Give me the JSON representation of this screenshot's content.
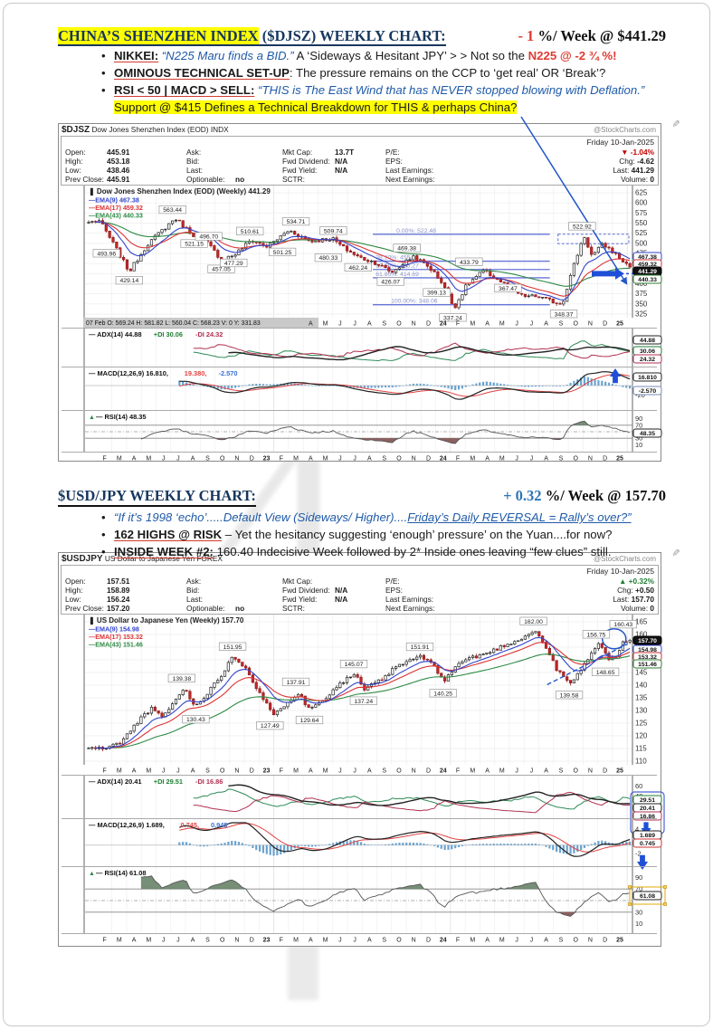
{
  "s1": {
    "title_hl": "CHINA’S SHENZHEN INDEX",
    "title_rest": " ($DJSZ) WEEKLY CHART:",
    "delta": "- 1",
    "delta_rest": " %/ Week @ $441.29",
    "b1_label": "NIKKEI:",
    "b1_quote": "“N225 Maru finds a BID.”",
    "b1_mid": " A ‘Sideways & Hesitant JPY’ > > Not so the ",
    "b1_alert": "N225 @ -2 ¾ %!",
    "b2_label": "OMINOUS TECHNICAL SET-UP",
    "b2_rest": ": The pressure remains on the CCP to ‘get real’ OR ‘Break’?",
    "b3_label": "RSI < 50 | MACD > SELL:",
    "b3_quote": " “THIS is The East Wind that has NEVER stopped blowing with Deflation.”",
    "b3_hl": " Support @ $415 Defines a Technical Breakdown for THIS & perhaps China?"
  },
  "s2": {
    "title": "$USD/JPY WEEKLY CHART:",
    "delta": "+ 0.32",
    "delta_rest": " %/ Week @ 157.70",
    "b1_pre": "“If it’s 1998 ‘echo’.....Default View (Sideways/ Higher)....",
    "b1_u": "Friday’s Daily REVERSAL = Rally’s over?”",
    "b2_label": "162 HIGHS @ RISK",
    "b2_rest": " – Yet the hesitancy suggesting ‘enough’ pressure’ on the Yuan....for now?",
    "b3_label": "INSIDE WEEK #2:",
    "b3_rest": " 160.40 Indecisive Week followed by 2* Inside ones leaving “few clues” still."
  },
  "c1": {
    "symbol": "$DJSZ",
    "name": "Dow Jones Shenzhen Index (EOD) INDX",
    "credit": "@StockCharts.com",
    "date": "Friday 10-Jan-2025",
    "pct_color": "#c00000",
    "quote_rows": [
      [
        "Open:",
        "445.91",
        "Ask:",
        "",
        "Mkt Cap:",
        "13.7T",
        "P/E:",
        "",
        "▼ -1.04%"
      ],
      [
        "High:",
        "453.18",
        "Bid:",
        "",
        "Fwd Dividend:",
        "N/A",
        "EPS:",
        "",
        "Chg: -4.62"
      ],
      [
        "Low:",
        "438.46",
        "Last:",
        "",
        "Fwd Yield:",
        "N/A",
        "Last Earnings:",
        "",
        "Last: 441.29"
      ],
      [
        "Prev Close:",
        "445.91",
        "Optionable:",
        "no",
        "SCTR:",
        "",
        "Next Earnings:",
        "",
        "Volume: 0"
      ]
    ]
  },
  "c2": {
    "symbol": "$USDJPY",
    "name": "US Dollar to Japanese Yen FOREX",
    "credit": "@StockCharts.com",
    "date": "Friday 10-Jan-2025",
    "pct_color": "#1e7d32",
    "quote_rows": [
      [
        "Open:",
        "157.51",
        "Ask:",
        "",
        "Mkt Cap:",
        "",
        "P/E:",
        "",
        "▲ +0.32%"
      ],
      [
        "High:",
        "158.89",
        "Bid:",
        "",
        "Fwd Dividend:",
        "N/A",
        "EPS:",
        "",
        "Chg: +0.50"
      ],
      [
        "Low:",
        "156.24",
        "Last:",
        "",
        "Fwd Yield:",
        "N/A",
        "Last Earnings:",
        "",
        "Last: 157.70"
      ],
      [
        "Prev Close:",
        "157.20",
        "Optionable:",
        "no",
        "SCTR:",
        "",
        "Next Earnings:",
        "",
        "Volume: 0"
      ]
    ]
  },
  "chart_data": [
    {
      "type": "candlestick",
      "symbol": "$DJSZ",
      "timeframe": "weekly",
      "title": "Dow Jones Shenzhen Index (EOD) (Weekly) 441.29",
      "last": 441.29,
      "change_pct": -1.04,
      "change": -4.62,
      "ylim": [
        325,
        625
      ],
      "ytick": 25,
      "months": [
        "F",
        "M",
        "A",
        "M",
        "J",
        "J",
        "A",
        "S",
        "O",
        "N",
        "D",
        "23",
        "F",
        "M",
        "A",
        "M",
        "J",
        "J",
        "A",
        "S",
        "O",
        "N",
        "D",
        "24",
        "F",
        "M",
        "A",
        "M",
        "J",
        "J",
        "A",
        "S",
        "O",
        "N",
        "D",
        "25"
      ],
      "ema_legend": [
        "EMA(9) 467.38",
        "EMA(17) 459.32",
        "EMA(43) 440.33"
      ],
      "ohlc_readout": "07 Feb O: 569.24  H: 581.82  L: 560.04  C: 568.23  V: 0  Y: 331.83",
      "noise": 5,
      "wick": 6,
      "seed": 7,
      "anchors": [
        [
          0,
          552
        ],
        [
          0.02,
          556
        ],
        [
          0.045,
          500
        ],
        [
          0.075,
          430
        ],
        [
          0.11,
          500
        ],
        [
          0.16,
          562
        ],
        [
          0.19,
          524
        ],
        [
          0.22,
          500
        ],
        [
          0.245,
          460
        ],
        [
          0.27,
          472
        ],
        [
          0.3,
          508
        ],
        [
          0.33,
          492
        ],
        [
          0.37,
          532
        ],
        [
          0.41,
          505
        ],
        [
          0.45,
          512
        ],
        [
          0.47,
          490
        ],
        [
          0.5,
          465
        ],
        [
          0.53,
          452
        ],
        [
          0.56,
          428
        ],
        [
          0.6,
          468
        ],
        [
          0.63,
          440
        ],
        [
          0.655,
          400
        ],
        [
          0.675,
          340
        ],
        [
          0.7,
          400
        ],
        [
          0.73,
          432
        ],
        [
          0.77,
          398
        ],
        [
          0.8,
          370
        ],
        [
          0.83,
          368
        ],
        [
          0.86,
          355
        ],
        [
          0.875,
          350
        ],
        [
          0.895,
          440
        ],
        [
          0.915,
          520
        ],
        [
          0.93,
          468
        ],
        [
          0.95,
          498
        ],
        [
          0.97,
          478
        ],
        [
          0.99,
          452
        ],
        [
          1,
          441.29
        ]
      ],
      "labels": [
        {
          "t": "493.96",
          "x": 0.033,
          "v": 493.96,
          "p": "b"
        },
        {
          "t": "429.14",
          "x": 0.075,
          "v": 427,
          "p": "b"
        },
        {
          "t": "563.44",
          "x": 0.155,
          "v": 566,
          "p": "a"
        },
        {
          "t": "521.15",
          "x": 0.195,
          "v": 518,
          "p": "b"
        },
        {
          "t": "496.70",
          "x": 0.222,
          "v": 500,
          "p": "a"
        },
        {
          "t": "457.05",
          "x": 0.245,
          "v": 455,
          "p": "b"
        },
        {
          "t": "477.29",
          "x": 0.268,
          "v": 470,
          "p": "b"
        },
        {
          "t": "510.61",
          "x": 0.298,
          "v": 513,
          "p": "a"
        },
        {
          "t": "501.25",
          "x": 0.358,
          "v": 497,
          "p": "b"
        },
        {
          "t": "534.71",
          "x": 0.383,
          "v": 537,
          "p": "a"
        },
        {
          "t": "480.33",
          "x": 0.443,
          "v": 483,
          "p": "b"
        },
        {
          "t": "509.74",
          "x": 0.452,
          "v": 514,
          "p": "a"
        },
        {
          "t": "462.24",
          "x": 0.498,
          "v": 459,
          "p": "b"
        },
        {
          "t": "426.07",
          "x": 0.558,
          "v": 424,
          "p": "b"
        },
        {
          "t": "469.38",
          "x": 0.588,
          "v": 471,
          "p": "a"
        },
        {
          "t": "399.13",
          "x": 0.643,
          "v": 397,
          "p": "b"
        },
        {
          "t": "337.24",
          "x": 0.673,
          "v": 335,
          "p": "b"
        },
        {
          "t": "433.79",
          "x": 0.703,
          "v": 437,
          "p": "a"
        },
        {
          "t": "367.47",
          "x": 0.775,
          "v": 372,
          "p": "a"
        },
        {
          "t": "348.37",
          "x": 0.878,
          "v": 344,
          "p": "b"
        },
        {
          "t": "522.92",
          "x": 0.912,
          "v": 525,
          "p": "a"
        }
      ],
      "fib": {
        "x1": 0.525,
        "x2": 0.85,
        "lines": [
          {
            "label": "0.00%: 522.48",
            "v": 522.48,
            "lx": 0.565
          },
          {
            "label": "38.20%: 455.85",
            "v": 455.85,
            "lx": 0.527
          },
          {
            "label": "50.00%: 435.27",
            "v": 435.27,
            "lx": 0.527
          },
          {
            "label": "61.80%: 414.69",
            "v": 414.69,
            "lx": 0.527
          },
          {
            "label": "100.00%: 348.06",
            "v": 348.06,
            "lx": 0.555
          }
        ]
      },
      "trend": {
        "x1": 508,
        "y1": -76,
        "x2": 621,
        "y2": 103
      },
      "dash_rect": {
        "x1f": 0.865,
        "x2f": 0.995,
        "v1": 522.48,
        "v2": 499
      },
      "dash_arrow_v": 425,
      "end_boxes": [
        {
          "t": "467.38",
          "c": "#3344cc",
          "y": 74
        },
        {
          "t": "459.32",
          "c": "#cc3333",
          "y": 82
        },
        {
          "t": "441.29",
          "c": "#000000",
          "fill": "#111111",
          "tc": "#ffffff",
          "y": 90
        },
        {
          "t": "440.33",
          "c": "#2e7d32",
          "y": 99
        }
      ],
      "panels": {
        "adx": {
          "legend": [
            "ADX(14) 44.88",
            "+DI 30.06",
            "-DI 24.32"
          ],
          "values": {
            "adx": 44.88,
            "pdi": 30.06,
            "mdi": 24.32
          },
          "ticks": [
            {
              "t": "60",
              "v": 60
            },
            {
              "t": "10",
              "v": 10
            }
          ],
          "boxes": [
            {
              "t": "44.88",
              "c": "#222222",
              "y": 8
            },
            {
              "t": "30.06",
              "c": "#1e7d32",
              "y": 20
            },
            {
              "t": "24.32",
              "c": "#b03050",
              "y": 29
            }
          ]
        },
        "macd": {
          "legend": [
            "MACD(12,26,9) 16.810,",
            "19.380,",
            "-2.570"
          ],
          "values": {
            "macd": 16.81,
            "signal": 19.38,
            "hist": -2.57
          },
          "ticks": [
            {
              "t": "-20",
              "v": -20
            }
          ],
          "boxes": [
            {
              "t": "16.810",
              "c": "#222222",
              "y": 6
            },
            {
              "t": "-2.570",
              "c": "#7a8ab8",
              "y": 21
            }
          ],
          "arrow": {
            "x": 612,
            "y": 10,
            "dir": -1
          }
        },
        "rsi": {
          "legend": "RSI(14) 48.35",
          "value": 48.35,
          "ticks": [
            {
              "t": "90",
              "v": 90
            },
            {
              "t": "70",
              "v": 70
            },
            {
              "t": "30",
              "v": 30
            },
            {
              "t": "10",
              "v": 10
            }
          ],
          "boxes": [
            {
              "t": "48.35",
              "c": "#222222",
              "y": 20
            }
          ]
        }
      }
    },
    {
      "type": "candlestick",
      "symbol": "$USDJPY",
      "timeframe": "weekly",
      "title": "US Dollar to Japanese Yen (Weekly) 157.70",
      "last": 157.7,
      "change_pct": 0.32,
      "change": 0.5,
      "ylim": [
        110,
        165
      ],
      "ytick": 5,
      "months": [
        "F",
        "M",
        "A",
        "M",
        "J",
        "J",
        "A",
        "S",
        "O",
        "N",
        "D",
        "23",
        "F",
        "M",
        "A",
        "M",
        "J",
        "J",
        "A",
        "S",
        "O",
        "N",
        "D",
        "24",
        "F",
        "M",
        "A",
        "M",
        "J",
        "J",
        "A",
        "S",
        "O",
        "N",
        "D",
        "25"
      ],
      "ema_legend": [
        "EMA(9) 154.98",
        "EMA(17) 153.32",
        "EMA(43) 151.46"
      ],
      "noise": 0.7,
      "wick": 1.0,
      "seed": 11,
      "anchors": [
        [
          0,
          115.2
        ],
        [
          0.03,
          115.0
        ],
        [
          0.06,
          117.5
        ],
        [
          0.1,
          128
        ],
        [
          0.118,
          131
        ],
        [
          0.135,
          127
        ],
        [
          0.16,
          134
        ],
        [
          0.178,
          139
        ],
        [
          0.195,
          131.5
        ],
        [
          0.22,
          137
        ],
        [
          0.245,
          144
        ],
        [
          0.266,
          151.5
        ],
        [
          0.29,
          147
        ],
        [
          0.31,
          139
        ],
        [
          0.342,
          127.8
        ],
        [
          0.365,
          133
        ],
        [
          0.39,
          137.5
        ],
        [
          0.405,
          130.5
        ],
        [
          0.43,
          133.5
        ],
        [
          0.46,
          140
        ],
        [
          0.493,
          144.8
        ],
        [
          0.507,
          138
        ],
        [
          0.54,
          142
        ],
        [
          0.57,
          147.5
        ],
        [
          0.614,
          151.6
        ],
        [
          0.64,
          147
        ],
        [
          0.657,
          141.5
        ],
        [
          0.68,
          148
        ],
        [
          0.7,
          150.5
        ],
        [
          0.72,
          151.5
        ],
        [
          0.74,
          153
        ],
        [
          0.76,
          155
        ],
        [
          0.79,
          157.5
        ],
        [
          0.825,
          161.5
        ],
        [
          0.845,
          155
        ],
        [
          0.865,
          146
        ],
        [
          0.89,
          140.5
        ],
        [
          0.91,
          146
        ],
        [
          0.93,
          153.5
        ],
        [
          0.945,
          156.5
        ],
        [
          0.962,
          149.5
        ],
        [
          0.975,
          152
        ],
        [
          0.99,
          157.5
        ],
        [
          1,
          157.7
        ]
      ],
      "labels": [
        {
          "t": "139.38",
          "x": 0.172,
          "v": 140,
          "p": "a"
        },
        {
          "t": "130.43",
          "x": 0.198,
          "v": 129.5,
          "p": "b"
        },
        {
          "t": "151.95",
          "x": 0.266,
          "v": 152.5,
          "p": "a"
        },
        {
          "t": "127.49",
          "x": 0.335,
          "v": 127,
          "p": "b"
        },
        {
          "t": "137.91",
          "x": 0.383,
          "v": 138.5,
          "p": "a"
        },
        {
          "t": "129.64",
          "x": 0.408,
          "v": 129.2,
          "p": "b"
        },
        {
          "t": "145.07",
          "x": 0.49,
          "v": 145.6,
          "p": "a"
        },
        {
          "t": "137.24",
          "x": 0.508,
          "v": 136.8,
          "p": "b"
        },
        {
          "t": "151.91",
          "x": 0.612,
          "v": 152.4,
          "p": "a"
        },
        {
          "t": "140.25",
          "x": 0.655,
          "v": 139.8,
          "p": "b"
        },
        {
          "t": "162.00",
          "x": 0.822,
          "v": 162.5,
          "p": "a"
        },
        {
          "t": "139.58",
          "x": 0.888,
          "v": 139.1,
          "p": "b"
        },
        {
          "t": "156.75",
          "x": 0.938,
          "v": 157.3,
          "p": "a"
        },
        {
          "t": "148.65",
          "x": 0.955,
          "v": 148.2,
          "p": "b"
        },
        {
          "t": "160.43",
          "x": 0.988,
          "v": 161.3,
          "p": "a"
        }
      ],
      "trend_dash": {
        "x1f": 0.845,
        "v1": 140.2,
        "x2f": 0.993,
        "v2": 156.3
      },
      "ellipse": {
        "xf": 0.968,
        "v": 158.3,
        "rx": 13,
        "ry": 11
      },
      "end_boxes": [
        {
          "t": "157.70",
          "c": "#000000",
          "fill": "#111111",
          "tc": "#ffffff",
          "y": 24
        },
        {
          "t": "154.98",
          "c": "#3344cc",
          "y": 34
        },
        {
          "t": "153.32",
          "c": "#cc3333",
          "y": 42
        },
        {
          "t": "151.46",
          "c": "#2e7d32",
          "y": 50
        }
      ],
      "panels": {
        "adx": {
          "legend": [
            "ADX(14) 20.41",
            "+DI 29.51",
            "-DI 16.86"
          ],
          "values": {
            "adx": 20.41,
            "pdi": 29.51,
            "mdi": 16.86
          },
          "ticks": [
            {
              "t": "60",
              "v": 60
            },
            {
              "t": "40",
              "v": 40
            },
            {
              "t": "10",
              "v": 10
            }
          ],
          "boxes": [
            {
              "t": "29.51",
              "c": "#1e7d32",
              "y": 22
            },
            {
              "t": "20.41",
              "c": "#222222",
              "y": 31
            },
            {
              "t": "16.86",
              "c": "#b03050",
              "y": 40
            }
          ],
          "blue_rect": true,
          "arrow": {
            "x": 646,
            "y": 58,
            "dir": 1
          }
        },
        "macd": {
          "legend": [
            "MACD(12,26,9) 1.689,",
            "0.745,",
            "0.945"
          ],
          "values": {
            "macd": 1.689,
            "signal": 0.745,
            "hist": 0.945
          },
          "ticks": [
            {
              "t": "4",
              "v": 4
            },
            {
              "t": "-2",
              "v": -2
            }
          ],
          "boxes": [
            {
              "t": "1.689",
              "c": "#222222",
              "y": 13
            },
            {
              "t": "0.745",
              "c": "#cc3333",
              "y": 22
            }
          ],
          "arrow": {
            "x": 642,
            "y": 47,
            "dir": 1
          }
        },
        "rsi": {
          "legend": "RSI(14) 61.08",
          "value": 61.08,
          "ticks": [
            {
              "t": "90",
              "v": 90
            },
            {
              "t": "70",
              "v": 70
            },
            {
              "t": "30",
              "v": 30
            },
            {
              "t": "10",
              "v": 10
            }
          ],
          "boxes": [
            {
              "t": "61.08",
              "c": "#222222",
              "y": 27
            }
          ],
          "sel_rect": true
        }
      }
    }
  ]
}
